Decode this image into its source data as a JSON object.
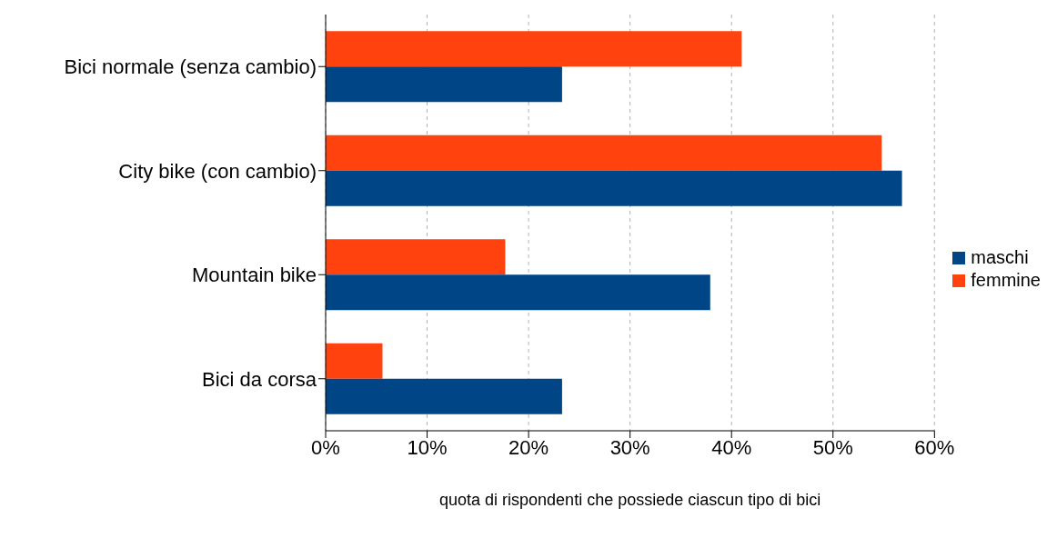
{
  "chart_data": {
    "type": "bar",
    "orientation": "horizontal",
    "xlabel": "quota di rispondenti che possiede ciascun tipo di bici",
    "categories": [
      "Bici normale (senza cambio)",
      "City bike (con cambio)",
      "Mountain bike",
      "Bici da corsa"
    ],
    "series": [
      {
        "name": "maschi",
        "color": "#004586",
        "values": [
          23.3,
          56.8,
          37.9,
          23.3
        ]
      },
      {
        "name": "femmine",
        "color": "#ff420e",
        "values": [
          41.0,
          54.8,
          17.7,
          5.6
        ]
      }
    ],
    "xlim": [
      0,
      60
    ],
    "xticks": [
      {
        "value": 0,
        "label": "0%"
      },
      {
        "value": 10,
        "label": "10%"
      },
      {
        "value": 20,
        "label": "20%"
      },
      {
        "value": 30,
        "label": "30%"
      },
      {
        "value": 40,
        "label": "40%"
      },
      {
        "value": 50,
        "label": "50%"
      },
      {
        "value": 60,
        "label": "60%"
      }
    ],
    "grid": "x",
    "legend": "right"
  }
}
